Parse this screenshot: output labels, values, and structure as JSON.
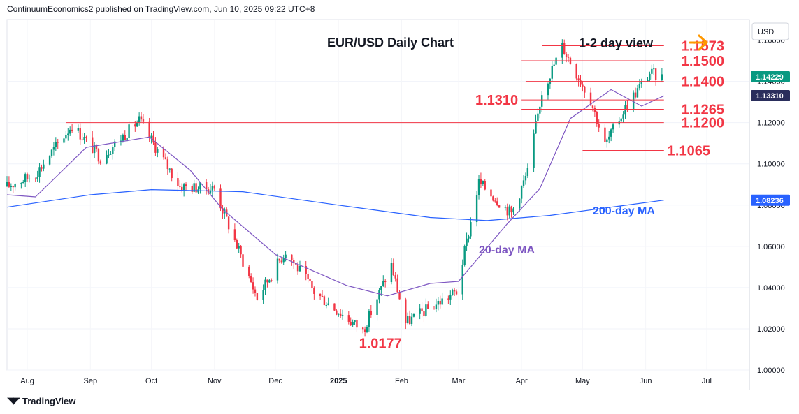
{
  "header": {
    "publisher": "ContinuumEconomics2 published on TradingView.com, Jun 10, 2025 09:22 UTC+8"
  },
  "footer": {
    "brand": "TradingView",
    "logo_icon": "tradingview-logo-icon"
  },
  "colors": {
    "up": "#089981",
    "down": "#f23645",
    "level": "#f23645",
    "ma20": "#7e57c2",
    "ma200": "#2962ff",
    "arrow": "#ff9800"
  },
  "chart_data": {
    "type": "candlestick",
    "title": "EUR/USD Daily Chart",
    "view_label": "1-2 day view",
    "view_icon": "arrow-right-icon",
    "currency": "USD",
    "x_labels": [
      "Aug",
      "Sep",
      "Oct",
      "Nov",
      "Dec",
      "2025",
      "Feb",
      "Mar",
      "Apr",
      "May",
      "Jun",
      "Jul"
    ],
    "x_range": [
      "2024-07-22",
      "2025-07-22"
    ],
    "ylim": [
      1.0,
      1.17
    ],
    "y_ticks": [
      "1.16000",
      "1.14000",
      "1.12000",
      "1.10000",
      "1.08000",
      "1.06000",
      "1.04000",
      "1.02000",
      "1.00000"
    ],
    "price_badges": [
      {
        "label": "1.14229",
        "value": 1.14229,
        "color": "#089981"
      },
      {
        "label": "1.13310",
        "value": 1.1331,
        "color": "#2a2e5c"
      },
      {
        "label": "1.08236",
        "value": 1.08236,
        "color": "#2962ff"
      }
    ],
    "levels": [
      {
        "label": "1.1573",
        "value": 1.1573,
        "start": "2025-04-11",
        "end": "2025-06-10",
        "label_side": "right"
      },
      {
        "label": "1.1500",
        "value": 1.15,
        "start": "2025-04-01",
        "end": "2025-06-10",
        "label_side": "right"
      },
      {
        "label": "1.1400",
        "value": 1.14,
        "start": "2025-04-03",
        "end": "2025-06-10",
        "label_side": "right"
      },
      {
        "label": "1.1310",
        "value": 1.131,
        "start": "2025-04-01",
        "end": "2025-06-10",
        "label_side": "left"
      },
      {
        "label": "1.1265",
        "value": 1.1265,
        "start": "2025-04-01",
        "end": "2025-06-10",
        "label_side": "right"
      },
      {
        "label": "1.1200",
        "value": 1.12,
        "start": "2024-08-20",
        "end": "2025-06-10",
        "label_side": "right"
      },
      {
        "label": "1.1065",
        "value": 1.1065,
        "start": "2025-05-01",
        "end": "2025-06-10",
        "label_side": "right"
      },
      {
        "label": "1.0177",
        "value": 1.0177,
        "start": "2025-01-13",
        "end": "2025-01-13",
        "label_side": "below",
        "line": false
      }
    ],
    "series": [
      {
        "name": "20-day MA",
        "color": "#7e57c2"
      },
      {
        "name": "200-day MA",
        "color": "#2962ff"
      }
    ],
    "trend_anchors": [
      [
        "2024-07-22",
        1.089
      ],
      [
        "2024-08-05",
        1.095
      ],
      [
        "2024-08-23",
        1.119
      ],
      [
        "2024-09-06",
        1.103
      ],
      [
        "2024-09-25",
        1.121
      ],
      [
        "2024-10-15",
        1.089
      ],
      [
        "2024-11-01",
        1.088
      ],
      [
        "2024-11-22",
        1.035
      ],
      [
        "2024-12-06",
        1.058
      ],
      [
        "2024-12-20",
        1.038
      ],
      [
        "2025-01-13",
        1.019
      ],
      [
        "2025-01-27",
        1.051
      ],
      [
        "2025-02-03",
        1.023
      ],
      [
        "2025-02-28",
        1.038
      ],
      [
        "2025-03-11",
        1.091
      ],
      [
        "2025-03-27",
        1.076
      ],
      [
        "2025-04-04",
        1.096
      ],
      [
        "2025-04-11",
        1.135
      ],
      [
        "2025-04-21",
        1.157
      ],
      [
        "2025-05-05",
        1.131
      ],
      [
        "2025-05-12",
        1.109
      ],
      [
        "2025-05-23",
        1.129
      ],
      [
        "2025-06-03",
        1.144
      ],
      [
        "2025-06-09",
        1.142
      ]
    ],
    "ma20_points": [
      [
        "2024-07-22",
        1.085
      ],
      [
        "2024-08-05",
        1.084
      ],
      [
        "2024-08-30",
        1.108
      ],
      [
        "2024-09-30",
        1.113
      ],
      [
        "2024-10-20",
        1.097
      ],
      [
        "2024-11-05",
        1.078
      ],
      [
        "2024-12-01",
        1.056
      ],
      [
        "2025-01-05",
        1.041
      ],
      [
        "2025-01-25",
        1.036
      ],
      [
        "2025-02-15",
        1.042
      ],
      [
        "2025-03-01",
        1.043
      ],
      [
        "2025-03-25",
        1.071
      ],
      [
        "2025-04-10",
        1.088
      ],
      [
        "2025-04-25",
        1.122
      ],
      [
        "2025-05-15",
        1.136
      ],
      [
        "2025-05-30",
        1.128
      ],
      [
        "2025-06-10",
        1.133
      ]
    ],
    "ma200_points": [
      [
        "2024-07-22",
        1.079
      ],
      [
        "2024-09-01",
        1.085
      ],
      [
        "2024-10-01",
        1.0875
      ],
      [
        "2024-11-15",
        1.0865
      ],
      [
        "2025-01-01",
        1.08
      ],
      [
        "2025-02-15",
        1.074
      ],
      [
        "2025-03-15",
        1.0725
      ],
      [
        "2025-04-15",
        1.075
      ],
      [
        "2025-05-15",
        1.079
      ],
      [
        "2025-06-10",
        1.0824
      ]
    ]
  }
}
